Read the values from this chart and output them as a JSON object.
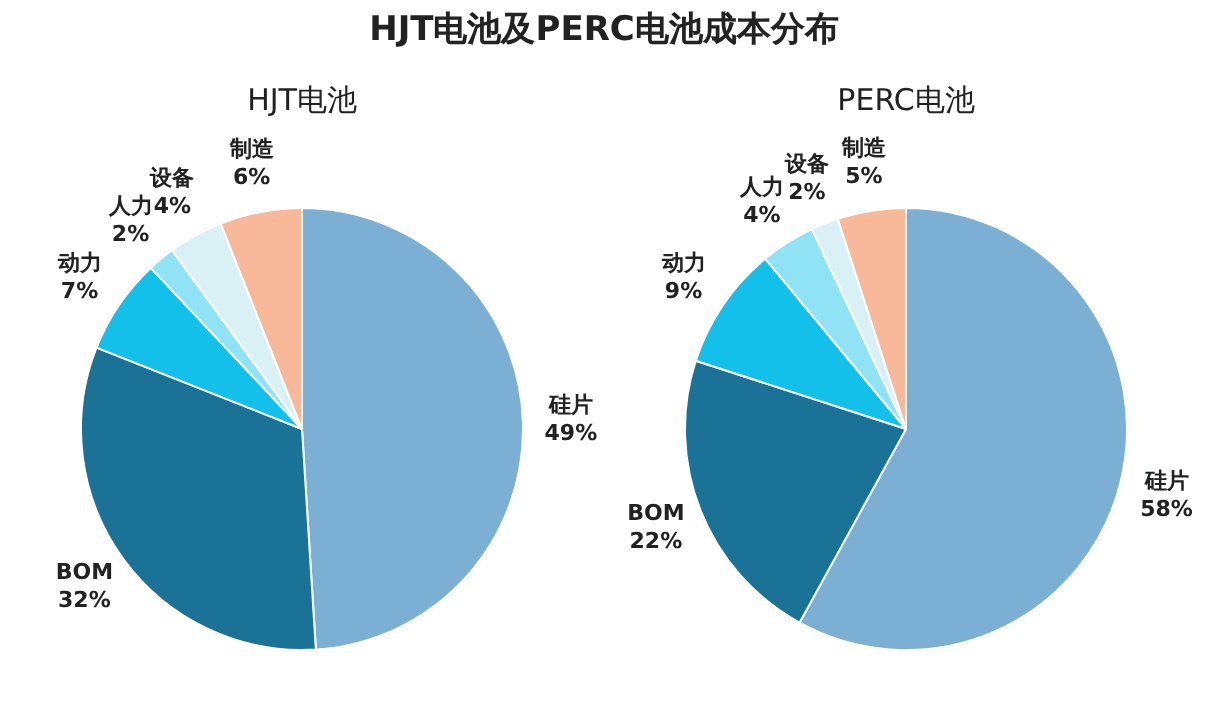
{
  "chart_data": [
    {
      "type": "pie",
      "title": "HJT电池及PERC电池成本分布",
      "subtitle": "HJT电池",
      "categories": [
        "硅片",
        "BOM",
        "动力",
        "人力",
        "设备",
        "制造"
      ],
      "values": [
        49,
        32,
        7,
        2,
        4,
        6
      ],
      "value_labels": [
        "49%",
        "32%",
        "7%",
        "2%",
        "4%",
        "6%"
      ],
      "colors": [
        "#7bafd4",
        "#1a7396",
        "#12c0ea",
        "#8fe3f5",
        "#d9f1f5",
        "#f8b89a"
      ],
      "legend": false
    },
    {
      "type": "pie",
      "title": "PERC电池",
      "categories": [
        "硅片",
        "BOM",
        "动力",
        "人力",
        "设备",
        "制造"
      ],
      "values": [
        58,
        22,
        9,
        4,
        2,
        5
      ],
      "value_labels": [
        "58%",
        "22%",
        "9%",
        "4%",
        "2%",
        "5%"
      ],
      "colors": [
        "#7bafd4",
        "#1a7396",
        "#12c0ea",
        "#8fe3f5",
        "#d9f1f5",
        "#f8b89a"
      ],
      "legend": false
    }
  ]
}
